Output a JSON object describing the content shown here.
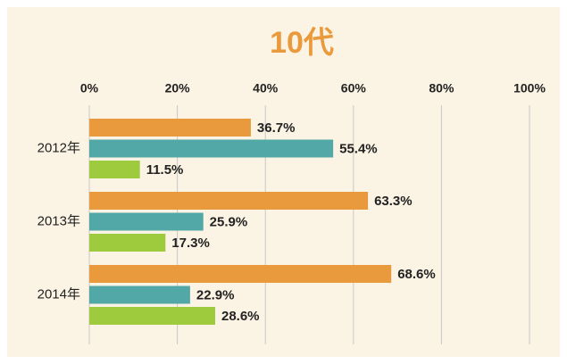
{
  "chart_data": {
    "type": "barh",
    "title": "10代",
    "categories": [
      "2012年",
      "2013年",
      "2014年"
    ],
    "series": [
      {
        "color": "#e99a3c",
        "values": [
          36.7,
          63.3,
          68.6
        ],
        "value_labels": [
          "36.7%",
          "63.3%",
          "68.6%"
        ]
      },
      {
        "color": "#52a8a6",
        "values": [
          55.4,
          25.9,
          22.9
        ],
        "value_labels": [
          "55.4%",
          "25.9%",
          "22.9%"
        ]
      },
      {
        "color": "#9dcb3d",
        "values": [
          11.5,
          17.3,
          28.6
        ],
        "value_labels": [
          "11.5%",
          "17.3%",
          "28.6%"
        ]
      }
    ],
    "xlim": [
      0,
      100
    ],
    "xticks": [
      {
        "value": 0,
        "label": "0%"
      },
      {
        "value": 20,
        "label": "20%"
      },
      {
        "value": 40,
        "label": "40%"
      },
      {
        "value": 60,
        "label": "60%"
      },
      {
        "value": 80,
        "label": "80%"
      },
      {
        "value": 100,
        "label": "100%"
      }
    ],
    "grid": true
  }
}
